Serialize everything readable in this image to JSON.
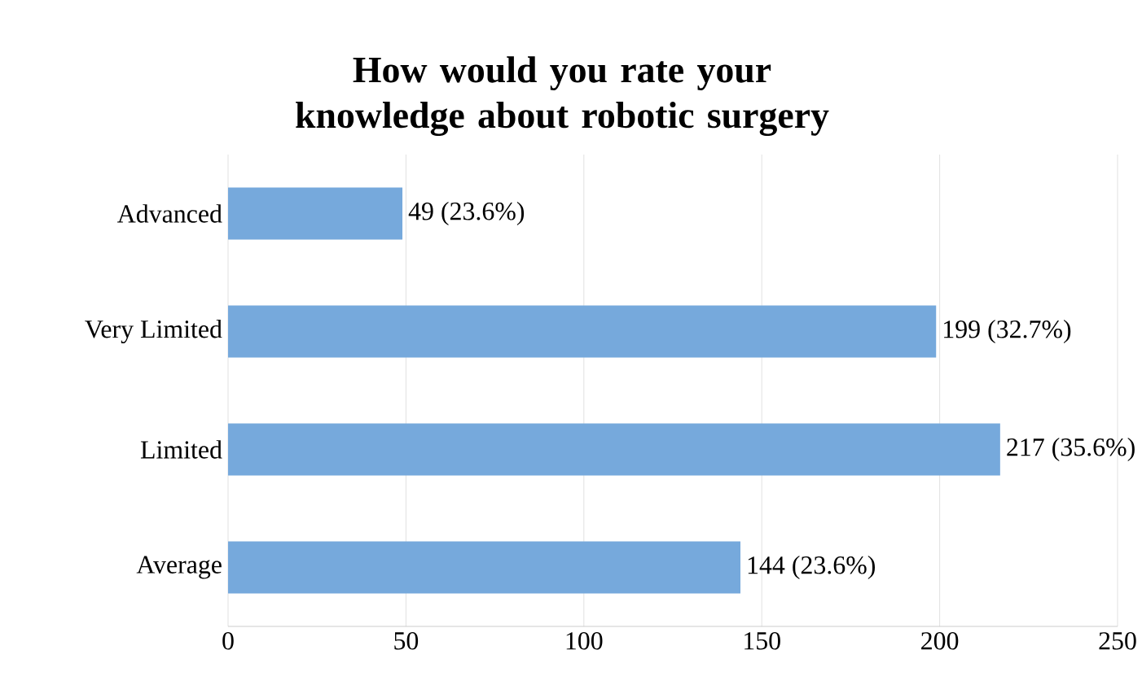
{
  "chart_data": {
    "type": "bar",
    "orientation": "horizontal",
    "title": "How would you rate your knowledge about robotic surgery",
    "categories": [
      "Advanced",
      "Very Limited",
      "Limited",
      "Average"
    ],
    "values": [
      49,
      199,
      217,
      144
    ],
    "value_labels": [
      "49 (23.6%)",
      "199 (32.7%)",
      "217 (35.6%)",
      "144 (23.6%)"
    ],
    "color": "#76a9dc",
    "xlim": [
      0,
      250
    ],
    "xticks": [
      0,
      50,
      100,
      150,
      200,
      250
    ],
    "grid": "x"
  }
}
